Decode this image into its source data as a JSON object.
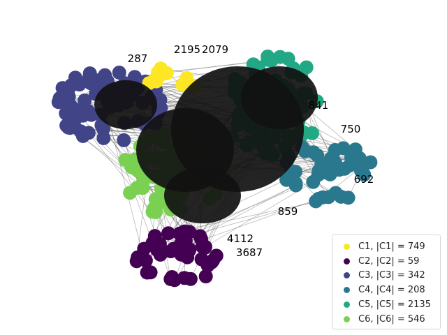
{
  "colors": {
    "C1": "#fde725",
    "C2": "#440154",
    "C3": "#414487",
    "C4": "#2a788e",
    "C5": "#22a884",
    "C6": "#7ad151",
    "edge": "#333333",
    "label": "#000000"
  },
  "legend": [
    {
      "key": "C1",
      "label": "C1, |C1| = 749"
    },
    {
      "key": "C2",
      "label": "C2, |C2| = 59"
    },
    {
      "key": "C3",
      "label": "C3, |C3| = 342"
    },
    {
      "key": "C4",
      "label": "C4, |C4| = 208"
    },
    {
      "key": "C5",
      "label": "C5, |C5| = 2135"
    },
    {
      "key": "C6",
      "label": "C6, |C6| = 546"
    }
  ],
  "visible_labels": [
    {
      "text": "2195",
      "community": "C1"
    },
    {
      "text": "2079",
      "community": "C1"
    },
    {
      "text": "287",
      "community": "C3"
    },
    {
      "text": "841",
      "community": "C4"
    },
    {
      "text": "750",
      "community": "C4"
    },
    {
      "text": "692",
      "community": "C4"
    },
    {
      "text": "859",
      "community": "C4"
    },
    {
      "text": "4112",
      "community": "C2"
    },
    {
      "text": "3687",
      "community": "C2"
    }
  ]
}
